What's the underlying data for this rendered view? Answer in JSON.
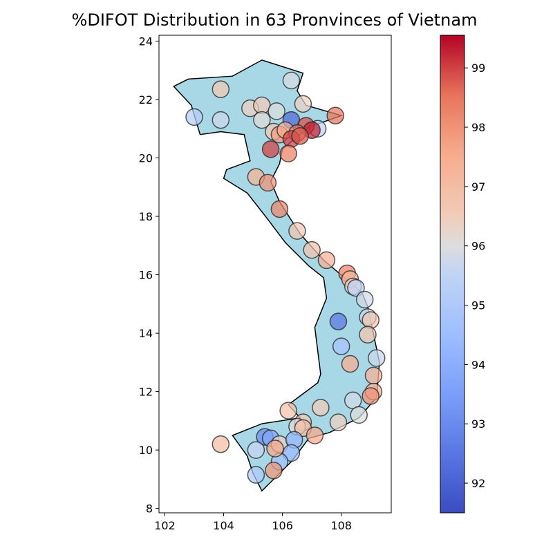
{
  "title": "%DIFOT Distribution in 63 Pronvinces of Vietnam",
  "colors": {
    "map_fill": "#a8d8e6",
    "map_stroke": "#000000",
    "cmap_low": "#3b4cc0",
    "cmap_mid": "#dddddd",
    "cmap_high": "#b40426"
  },
  "chart_data": {
    "type": "scatter",
    "title": "%DIFOT Distribution in 63 Pronvinces of Vietnam",
    "xlabel": "",
    "ylabel": "",
    "xlim": [
      101.8,
      109.7
    ],
    "ylim": [
      7.85,
      24.2
    ],
    "xticks": [
      102,
      104,
      106,
      108
    ],
    "yticks": [
      8,
      10,
      12,
      14,
      16,
      18,
      20,
      22,
      24
    ],
    "colorbar": {
      "vmin": 91.5,
      "vmax": 99.55,
      "ticks": [
        92,
        93,
        94,
        95,
        96,
        97,
        98,
        99
      ],
      "colormap": "coolwarm"
    },
    "grid": false,
    "country_outline": [
      [
        102.3,
        22.45
      ],
      [
        102.8,
        22.7
      ],
      [
        104.3,
        22.8
      ],
      [
        105.3,
        23.35
      ],
      [
        106.7,
        22.9
      ],
      [
        106.5,
        22.3
      ],
      [
        106.8,
        21.8
      ],
      [
        108.0,
        21.45
      ],
      [
        106.9,
        21.05
      ],
      [
        106.0,
        20.3
      ],
      [
        105.9,
        19.8
      ],
      [
        105.6,
        19.2
      ],
      [
        105.9,
        18.5
      ],
      [
        106.6,
        17.4
      ],
      [
        107.4,
        16.5
      ],
      [
        108.7,
        15.4
      ],
      [
        108.9,
        14.9
      ],
      [
        109.3,
        13.0
      ],
      [
        109.2,
        11.8
      ],
      [
        108.6,
        11.1
      ],
      [
        107.6,
        10.6
      ],
      [
        106.9,
        10.4
      ],
      [
        106.3,
        9.6
      ],
      [
        105.7,
        9.0
      ],
      [
        105.3,
        8.6
      ],
      [
        105.0,
        9.2
      ],
      [
        104.8,
        9.8
      ],
      [
        104.3,
        10.5
      ],
      [
        105.3,
        10.9
      ],
      [
        106.6,
        11.1
      ],
      [
        106.2,
        11.55
      ],
      [
        107.2,
        12.3
      ],
      [
        107.3,
        12.6
      ],
      [
        107.1,
        14.2
      ],
      [
        107.5,
        15.2
      ],
      [
        107.4,
        15.9
      ],
      [
        106.9,
        16.3
      ],
      [
        106.1,
        17.1
      ],
      [
        105.5,
        17.9
      ],
      [
        104.8,
        18.8
      ],
      [
        104.0,
        19.3
      ],
      [
        104.1,
        19.6
      ],
      [
        104.9,
        19.9
      ],
      [
        104.7,
        20.8
      ],
      [
        103.9,
        20.9
      ],
      [
        103.2,
        20.8
      ],
      [
        102.9,
        21.8
      ]
    ],
    "points": [
      {
        "x": 106.3,
        "y": 22.65,
        "value": 95.9
      },
      {
        "x": 106.7,
        "y": 21.85,
        "value": 96.3
      },
      {
        "x": 103.9,
        "y": 22.35,
        "value": 96.6
      },
      {
        "x": 103.0,
        "y": 21.4,
        "value": 95.2
      },
      {
        "x": 103.9,
        "y": 21.3,
        "value": 95.7
      },
      {
        "x": 104.9,
        "y": 21.7,
        "value": 96.4
      },
      {
        "x": 105.3,
        "y": 21.8,
        "value": 96.5
      },
      {
        "x": 105.8,
        "y": 21.6,
        "value": 96.0
      },
      {
        "x": 105.3,
        "y": 21.3,
        "value": 96.1
      },
      {
        "x": 106.3,
        "y": 21.3,
        "value": 92.2
      },
      {
        "x": 107.8,
        "y": 21.45,
        "value": 98.5
      },
      {
        "x": 107.2,
        "y": 21.0,
        "value": 95.5
      },
      {
        "x": 106.8,
        "y": 21.1,
        "value": 98.9
      },
      {
        "x": 107.0,
        "y": 20.95,
        "value": 99.3
      },
      {
        "x": 105.7,
        "y": 20.9,
        "value": 96.6
      },
      {
        "x": 105.9,
        "y": 20.8,
        "value": 97.8
      },
      {
        "x": 106.1,
        "y": 20.95,
        "value": 97.5
      },
      {
        "x": 106.5,
        "y": 20.85,
        "value": 98.4
      },
      {
        "x": 106.3,
        "y": 20.65,
        "value": 99.0
      },
      {
        "x": 106.6,
        "y": 20.75,
        "value": 98.8
      },
      {
        "x": 105.6,
        "y": 20.3,
        "value": 99.0
      },
      {
        "x": 106.2,
        "y": 20.15,
        "value": 98.3
      },
      {
        "x": 105.1,
        "y": 19.35,
        "value": 97.3
      },
      {
        "x": 105.5,
        "y": 19.15,
        "value": 98.0
      },
      {
        "x": 105.9,
        "y": 18.25,
        "value": 98.2
      },
      {
        "x": 106.5,
        "y": 17.5,
        "value": 96.7
      },
      {
        "x": 107.0,
        "y": 16.85,
        "value": 96.8
      },
      {
        "x": 107.5,
        "y": 16.5,
        "value": 97.4
      },
      {
        "x": 108.2,
        "y": 16.05,
        "value": 98.3
      },
      {
        "x": 108.3,
        "y": 15.85,
        "value": 97.2
      },
      {
        "x": 108.4,
        "y": 15.6,
        "value": 96.3
      },
      {
        "x": 108.5,
        "y": 15.55,
        "value": 95.5
      },
      {
        "x": 108.8,
        "y": 15.15,
        "value": 95.8
      },
      {
        "x": 108.9,
        "y": 14.55,
        "value": 95.6
      },
      {
        "x": 109.0,
        "y": 14.45,
        "value": 96.7
      },
      {
        "x": 107.9,
        "y": 14.4,
        "value": 92.5
      },
      {
        "x": 108.9,
        "y": 13.95,
        "value": 96.7
      },
      {
        "x": 108.0,
        "y": 13.55,
        "value": 94.8
      },
      {
        "x": 109.2,
        "y": 13.15,
        "value": 95.7
      },
      {
        "x": 108.3,
        "y": 12.95,
        "value": 97.5
      },
      {
        "x": 109.1,
        "y": 12.55,
        "value": 97.4
      },
      {
        "x": 109.1,
        "y": 12.0,
        "value": 97.5
      },
      {
        "x": 109.0,
        "y": 11.85,
        "value": 98.0
      },
      {
        "x": 108.4,
        "y": 11.7,
        "value": 95.8
      },
      {
        "x": 107.3,
        "y": 11.45,
        "value": 96.5
      },
      {
        "x": 108.6,
        "y": 11.2,
        "value": 96.0
      },
      {
        "x": 106.2,
        "y": 11.35,
        "value": 96.8
      },
      {
        "x": 107.9,
        "y": 10.95,
        "value": 96.4
      },
      {
        "x": 106.7,
        "y": 10.95,
        "value": 96.6
      },
      {
        "x": 106.5,
        "y": 10.8,
        "value": 96.1
      },
      {
        "x": 106.7,
        "y": 10.75,
        "value": 97.0
      },
      {
        "x": 107.1,
        "y": 10.5,
        "value": 97.6
      },
      {
        "x": 105.4,
        "y": 10.45,
        "value": 93.0
      },
      {
        "x": 105.6,
        "y": 10.4,
        "value": 93.8
      },
      {
        "x": 103.9,
        "y": 10.2,
        "value": 97.0
      },
      {
        "x": 105.9,
        "y": 10.2,
        "value": 96.3
      },
      {
        "x": 106.4,
        "y": 10.35,
        "value": 94.3
      },
      {
        "x": 105.1,
        "y": 10.0,
        "value": 95.6
      },
      {
        "x": 106.3,
        "y": 9.9,
        "value": 94.5
      },
      {
        "x": 105.9,
        "y": 9.6,
        "value": 94.6
      },
      {
        "x": 105.7,
        "y": 9.3,
        "value": 97.9
      },
      {
        "x": 105.1,
        "y": 9.15,
        "value": 95.0
      },
      {
        "x": 105.75,
        "y": 10.05,
        "value": 97.6
      }
    ]
  }
}
